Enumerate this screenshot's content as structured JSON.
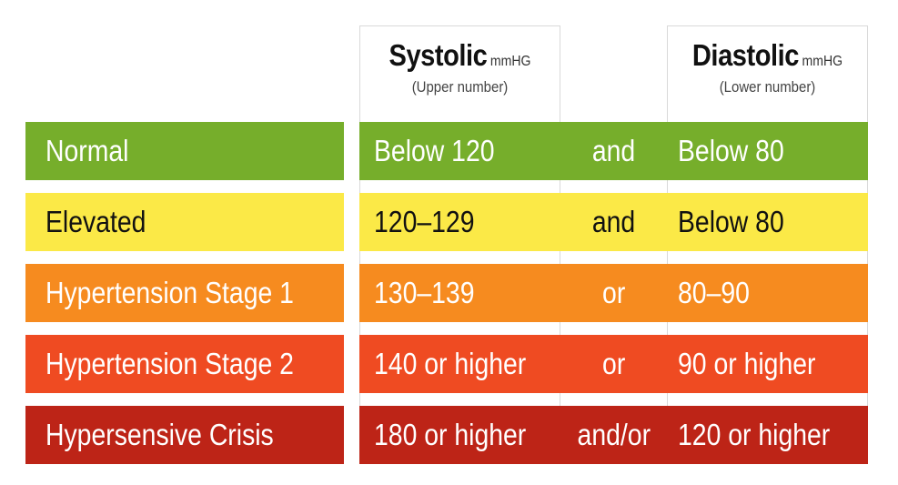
{
  "header": {
    "systolic": {
      "title": "Systolic",
      "unit": "mmHG",
      "sub": "(Upper number)"
    },
    "diastolic": {
      "title": "Diastolic",
      "unit": "mmHG",
      "sub": "(Lower number)"
    }
  },
  "rows": [
    {
      "label": "Normal",
      "systolic": "Below 120",
      "conj": "and",
      "diastolic": "Below 80",
      "color": "#76ae2b",
      "text_color": "#ffffff"
    },
    {
      "label": "Elevated",
      "systolic": "120–129",
      "conj": "and",
      "diastolic": "Below 80",
      "color": "#fbe947",
      "text_color": "#111111"
    },
    {
      "label": "Hypertension Stage 1",
      "systolic": "130–139",
      "conj": "or",
      "diastolic": "80–90",
      "color": "#f68b1f",
      "text_color": "#ffffff"
    },
    {
      "label": "Hypertension Stage 2",
      "systolic": "140 or higher",
      "conj": "or",
      "diastolic": "90 or higher",
      "color": "#ef4b22",
      "text_color": "#ffffff"
    },
    {
      "label": "Hypersensive Crisis",
      "systolic": "180 or higher",
      "conj": "and/or",
      "diastolic": "120 or higher",
      "color": "#bd2417",
      "text_color": "#ffffff"
    }
  ]
}
